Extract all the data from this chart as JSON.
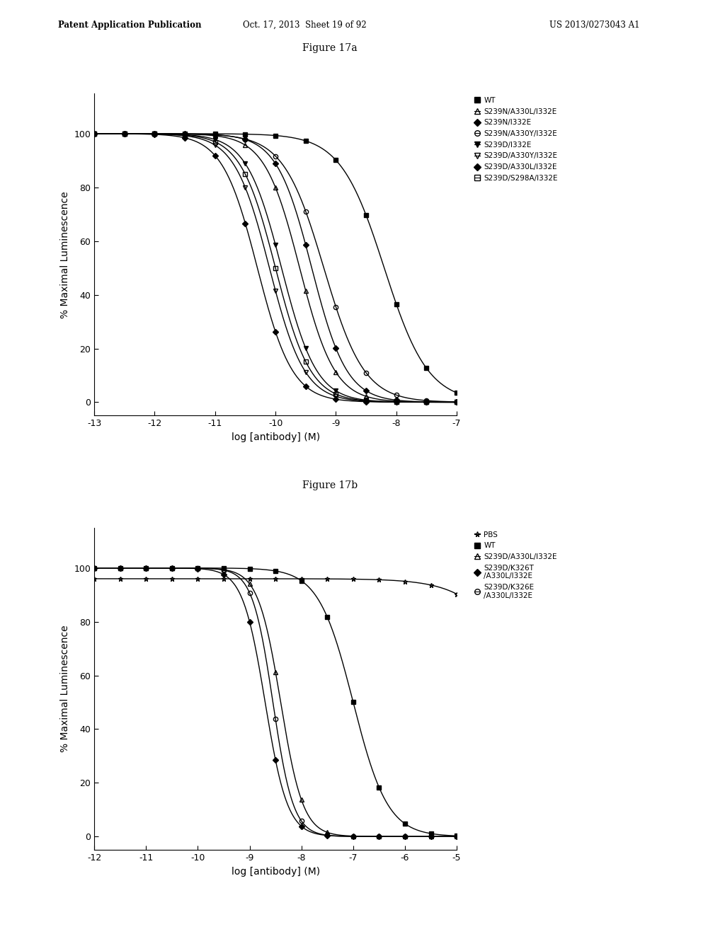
{
  "header_left": "Patent Application Publication",
  "header_mid": "Oct. 17, 2013  Sheet 19 of 92",
  "header_right": "US 2013/0273043 A1",
  "fig1_title": "Figure 17a",
  "fig2_title": "Figure 17b",
  "xlabel": "log [antibody] (M)",
  "ylabel": "% Maximal Luminescence",
  "bg_color": "#ffffff",
  "fig1": {
    "xlim": [
      -13,
      -7
    ],
    "xticks": [
      -13,
      -12,
      -11,
      -10,
      -9,
      -8,
      -7
    ],
    "ylim": [
      -5,
      115
    ],
    "yticks": [
      0,
      20,
      40,
      60,
      80,
      100
    ],
    "series": [
      {
        "label": "WT",
        "ec50": -8.2,
        "hill": 1.2,
        "top": 100,
        "marker": "s",
        "fillstyle": "full"
      },
      {
        "label": "S239N/A330L/I332E",
        "ec50": -9.6,
        "hill": 1.5,
        "top": 100,
        "marker": "^",
        "fillstyle": "none"
      },
      {
        "label": "S239N/I332E",
        "ec50": -9.4,
        "hill": 1.5,
        "top": 100,
        "marker": "D",
        "fillstyle": "full"
      },
      {
        "label": "S239N/A330Y/I332E",
        "ec50": -9.2,
        "hill": 1.3,
        "top": 100,
        "marker": "o",
        "fillstyle": "none"
      },
      {
        "label": "S239D/I332E",
        "ec50": -9.9,
        "hill": 1.5,
        "top": 100,
        "marker": "v",
        "fillstyle": "full"
      },
      {
        "label": "S239D/A330Y/I332E",
        "ec50": -10.1,
        "hill": 1.5,
        "top": 100,
        "marker": "v",
        "fillstyle": "none"
      },
      {
        "label": "S239D/A330L/I332E",
        "ec50": -10.3,
        "hill": 1.5,
        "top": 100,
        "marker": "D",
        "fillstyle": "full"
      },
      {
        "label": "S239D/S298A/I332E",
        "ec50": -10.0,
        "hill": 1.5,
        "top": 100,
        "marker": "s",
        "fillstyle": "none"
      }
    ]
  },
  "fig2": {
    "xlim": [
      -12,
      -5
    ],
    "xticks": [
      -12,
      -11,
      -10,
      -9,
      -8,
      -7,
      -6,
      -5
    ],
    "ylim": [
      -5,
      115
    ],
    "yticks": [
      0,
      20,
      40,
      60,
      80,
      100
    ],
    "series": [
      {
        "label": "PBS",
        "ec50": -3.5,
        "hill": 0.8,
        "top": 96,
        "marker": "*",
        "fillstyle": "none"
      },
      {
        "label": "WT",
        "ec50": -7.0,
        "hill": 1.3,
        "top": 100,
        "marker": "s",
        "fillstyle": "full"
      },
      {
        "label": "S239D/A330L/I332E",
        "ec50": -8.4,
        "hill": 2.0,
        "top": 100,
        "marker": "^",
        "fillstyle": "none"
      },
      {
        "label": "S239D/K326T\n/A330L/I332E",
        "ec50": -8.7,
        "hill": 2.0,
        "top": 100,
        "marker": "D",
        "fillstyle": "full"
      },
      {
        "label": "S239D/K326E\n/A330L/I332E",
        "ec50": -8.55,
        "hill": 2.2,
        "top": 100,
        "marker": "o",
        "fillstyle": "none"
      }
    ]
  }
}
